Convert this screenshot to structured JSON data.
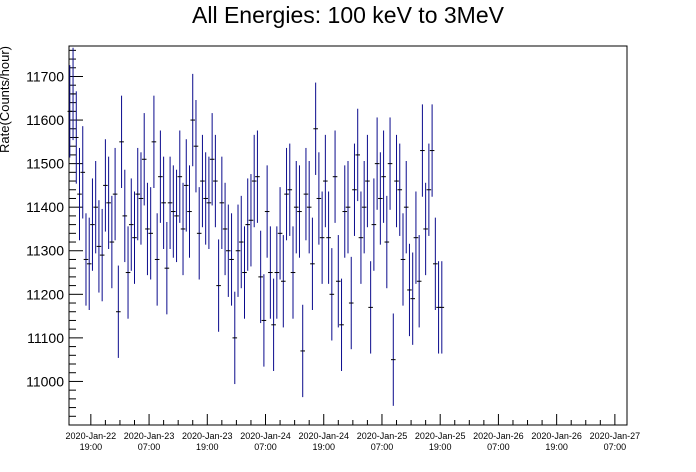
{
  "chart_data": {
    "type": "scatter",
    "title": "All Energies:  100 keV to 3MeV",
    "xlabel": "",
    "ylabel": "Rate(Counts/hour)",
    "grid": false,
    "legend": "none",
    "xlim": [
      "2020-01-22T14:30",
      "2020-01-27T09:30"
    ],
    "ylim": [
      10900,
      11770
    ],
    "y_ticks": [
      11000,
      11100,
      11200,
      11300,
      11400,
      11500,
      11600,
      11700
    ],
    "x_ticks": [
      {
        "date": "2020-Jan-22",
        "time": "19:00",
        "t": "2020-01-22T19:00"
      },
      {
        "date": "2020-Jan-23",
        "time": "07:00",
        "t": "2020-01-23T07:00"
      },
      {
        "date": "2020-Jan-23",
        "time": "19:00",
        "t": "2020-01-23T19:00"
      },
      {
        "date": "2020-Jan-24",
        "time": "07:00",
        "t": "2020-01-24T07:00"
      },
      {
        "date": "2020-Jan-24",
        "time": "19:00",
        "t": "2020-01-24T19:00"
      },
      {
        "date": "2020-Jan-25",
        "time": "07:00",
        "t": "2020-01-25T07:00"
      },
      {
        "date": "2020-Jan-25",
        "time": "19:00",
        "t": "2020-01-25T19:00"
      },
      {
        "date": "2020-Jan-26",
        "time": "07:00",
        "t": "2020-01-26T07:00"
      },
      {
        "date": "2020-Jan-26",
        "time": "19:00",
        "t": "2020-01-26T19:00"
      },
      {
        "date": "2020-Jan-27",
        "time": "07:00",
        "t": "2020-01-27T07:00"
      }
    ],
    "series": [
      {
        "color": "#0a0a8c",
        "error": 106,
        "start": "2020-01-22T14:40",
        "step_minutes": 40,
        "values": [
          11620,
          11660,
          11560,
          11430,
          11480,
          11280,
          11270,
          11360,
          11400,
          11310,
          11290,
          11450,
          11410,
          11320,
          11430,
          11160,
          11550,
          11380,
          11250,
          11360,
          11330,
          11430,
          11420,
          11510,
          11350,
          11340,
          11550,
          11280,
          11470,
          11410,
          11260,
          11410,
          11390,
          11380,
          11470,
          11350,
          11450,
          11390,
          11600,
          11540,
          11340,
          11460,
          11420,
          11410,
          11510,
          11460,
          11220,
          11410,
          11350,
          11300,
          11280,
          11100,
          11300,
          11320,
          11250,
          11360,
          11370,
          11460,
          11470,
          11240,
          11140,
          11390,
          11250,
          11130,
          11250,
          11340,
          11230,
          11430,
          11440,
          11250,
          11400,
          11390,
          11070,
          11430,
          11400,
          11270,
          11580,
          11420,
          11330,
          11460,
          11330,
          11200,
          11470,
          11230,
          11130,
          11390,
          11400,
          11180,
          11440,
          11520,
          11330,
          11400,
          11460,
          11170,
          11360,
          11500,
          11420,
          11470,
          11320,
          11500,
          11050,
          11460,
          11440,
          11280,
          11400,
          11210,
          11190,
          11330,
          11230,
          11530,
          11350,
          11440,
          11530,
          11270,
          11170,
          11170
        ]
      }
    ]
  }
}
